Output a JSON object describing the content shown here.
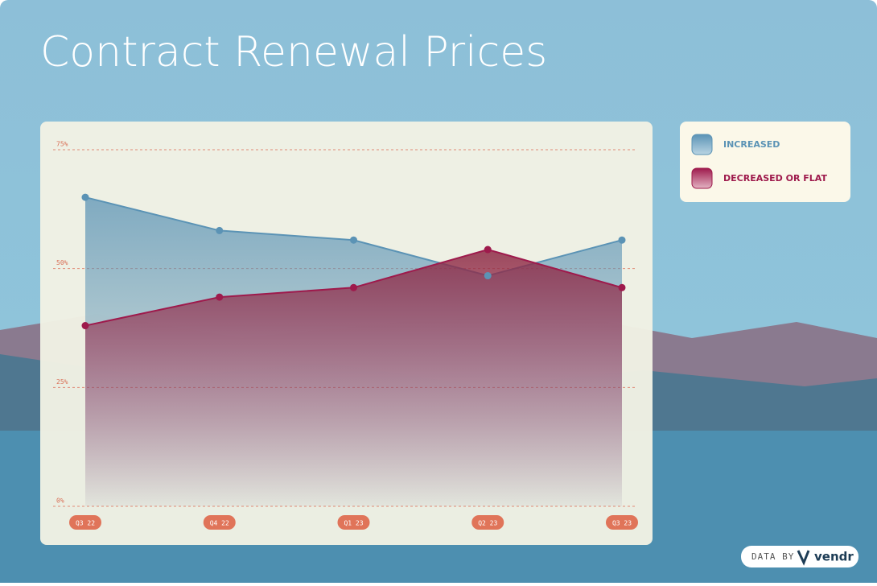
{
  "chart_data": {
    "type": "area",
    "title": "Contract Renewal Prices",
    "categories": [
      "Q3 22",
      "Q4 22",
      "Q1 23",
      "Q2 23",
      "Q3 23"
    ],
    "series": [
      {
        "name": "INCREASED",
        "color": "#5b93b5",
        "values": [
          65,
          58,
          56,
          48.5,
          56
        ]
      },
      {
        "name": "DECREASED OR FLAT",
        "color": "#9e1a4c",
        "values": [
          38,
          44,
          46,
          54,
          46
        ]
      }
    ],
    "ylim": [
      0,
      75
    ],
    "yticks": [
      {
        "value": 0,
        "label": "0%"
      },
      {
        "value": 25,
        "label": "25%"
      },
      {
        "value": 50,
        "label": "50%"
      },
      {
        "value": 75,
        "label": "75%"
      }
    ],
    "grid": true
  },
  "footer": {
    "prefix": "DATA BY",
    "brand": "vendr"
  }
}
